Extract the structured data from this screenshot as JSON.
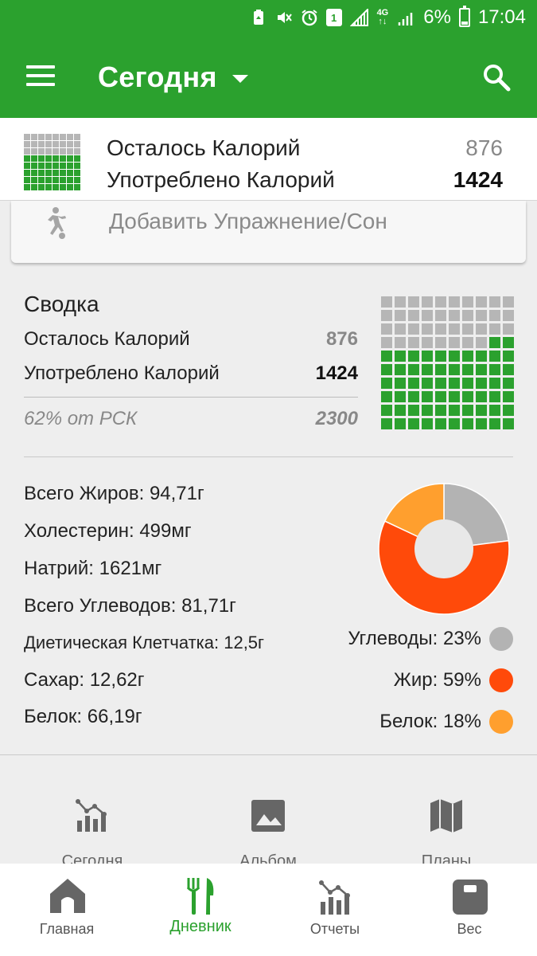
{
  "status_bar": {
    "battery_percent": "6%",
    "time": "17:04",
    "sim_badge": "1",
    "network": "4G"
  },
  "app_bar": {
    "title": "Сегодня"
  },
  "top_summary": {
    "remaining_label": "Осталось Калорий",
    "remaining_value": "876",
    "consumed_label": "Употреблено Калорий",
    "consumed_value": "1424",
    "grid_filled_fraction": 0.62
  },
  "exercise_card": {
    "label": "Добавить Упражнение/Сон"
  },
  "summary": {
    "title": "Сводка",
    "remaining_label": "Осталось Калорий",
    "remaining_value": "876",
    "consumed_label": "Употреблено Калорий",
    "consumed_value": "1424",
    "percent_label": "62% от РСК",
    "rsk_value": "2300",
    "grid_filled_fraction": 0.62
  },
  "nutrients": [
    {
      "label": "Всего Жиров: 94,71г"
    },
    {
      "label": "Холестерин: 499мг"
    },
    {
      "label": "Натрий: 1621мг"
    },
    {
      "label": "Всего Углеводов: 81,71г"
    },
    {
      "label": "Диетическая Клетчатка: 12,5г"
    },
    {
      "label": "Сахар: 12,62г"
    },
    {
      "label": "Белок: 66,19г"
    }
  ],
  "macros": [
    {
      "label": "Углеводы: 23%",
      "percent": 23,
      "color": "#b3b3b3"
    },
    {
      "label": "Жир: 59%",
      "percent": 59,
      "color": "#ff4a0a"
    },
    {
      "label": "Белок: 18%",
      "percent": 18,
      "color": "#ff9f2e"
    }
  ],
  "colors": {
    "brand_green": "#2ba12e",
    "grid_empty": "#b6b6b6",
    "donut_hole": "#e8e8e8"
  },
  "shortcuts": [
    {
      "label": "Сегодня",
      "icon": "chart-icon"
    },
    {
      "label": "Альбом",
      "icon": "image-icon"
    },
    {
      "label": "Планы",
      "icon": "map-icon"
    }
  ],
  "bottom_nav": [
    {
      "label": "Главная",
      "icon": "home-icon",
      "active": false
    },
    {
      "label": "Дневник",
      "icon": "fork-knife-icon",
      "active": true
    },
    {
      "label": "Отчеты",
      "icon": "chart-icon",
      "active": false
    },
    {
      "label": "Вес",
      "icon": "scale-icon",
      "active": false
    }
  ]
}
